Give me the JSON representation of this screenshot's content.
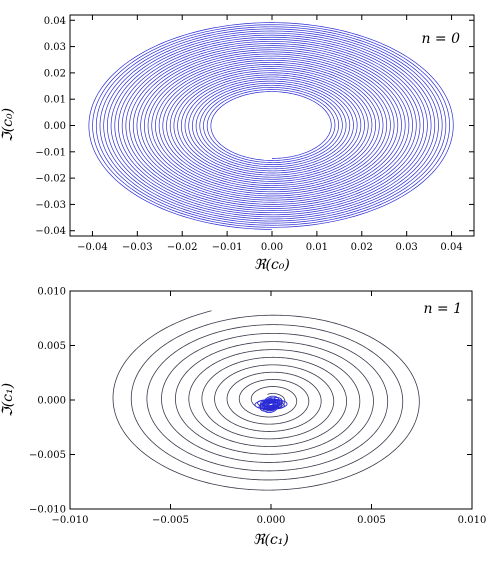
{
  "chart_data": [
    {
      "type": "line",
      "panel_tag": "n = 0",
      "xlabel": "ℜ(c₀)",
      "ylabel": "ℑ(c₀)",
      "xlim": [
        -0.045,
        0.045
      ],
      "ylim": [
        -0.042,
        0.042
      ],
      "xticks": [
        -0.04,
        -0.03,
        -0.02,
        -0.01,
        0.0,
        0.01,
        0.02,
        0.03,
        0.04
      ],
      "xtick_labels": [
        "−0.04",
        "−0.03",
        "−0.02",
        "−0.01",
        "0.00",
        "0.01",
        "0.02",
        "0.03",
        "0.04"
      ],
      "yticks": [
        0.04,
        0.03,
        0.02,
        0.01,
        0.0,
        -0.01,
        -0.02,
        -0.03,
        -0.04
      ],
      "ytick_labels": [
        "0.04",
        "0.03",
        "0.02",
        "0.01",
        "0.00",
        "−0.01",
        "−0.02",
        "−0.03",
        "−0.04"
      ],
      "series": [
        {
          "color": "#2b2bd6",
          "x_radius_range": [
            0.013,
            0.041
          ],
          "y_radius_range": [
            0.0125,
            0.0395
          ],
          "turns": 34,
          "center": [
            0.0,
            0.0
          ]
        }
      ]
    },
    {
      "type": "line",
      "panel_tag": "n = 1",
      "xlabel": "ℜ(c₁)",
      "ylabel": "ℑ(c₁)",
      "xlim": [
        -0.01,
        0.01
      ],
      "ylim": [
        -0.01,
        0.01
      ],
      "xticks": [
        -0.01,
        -0.005,
        0.0,
        0.005,
        0.01
      ],
      "xtick_labels": [
        "−0.010",
        "−0.005",
        "0.000",
        "0.005",
        "0.010"
      ],
      "yticks": [
        0.01,
        0.005,
        0.0,
        -0.005,
        -0.01
      ],
      "ytick_labels": [
        "0.010",
        "0.005",
        "0.000",
        "−0.005",
        "−0.010"
      ],
      "series": [
        {
          "color": "#3a3a4a",
          "spiral_outer_radius": [
            0.0081,
            0.0088
          ],
          "spiral_inner_radius": [
            0.0005,
            0.00055
          ],
          "turns": 11,
          "start_point": [
            -0.0033,
            0.0084
          ],
          "center": [
            0.0,
            0.0
          ]
        },
        {
          "color": "#2b2bd6",
          "core_radius_range": [
            0.00015,
            0.0008
          ],
          "turns": 18,
          "center": [
            0.0,
            -0.0004
          ]
        }
      ]
    }
  ]
}
